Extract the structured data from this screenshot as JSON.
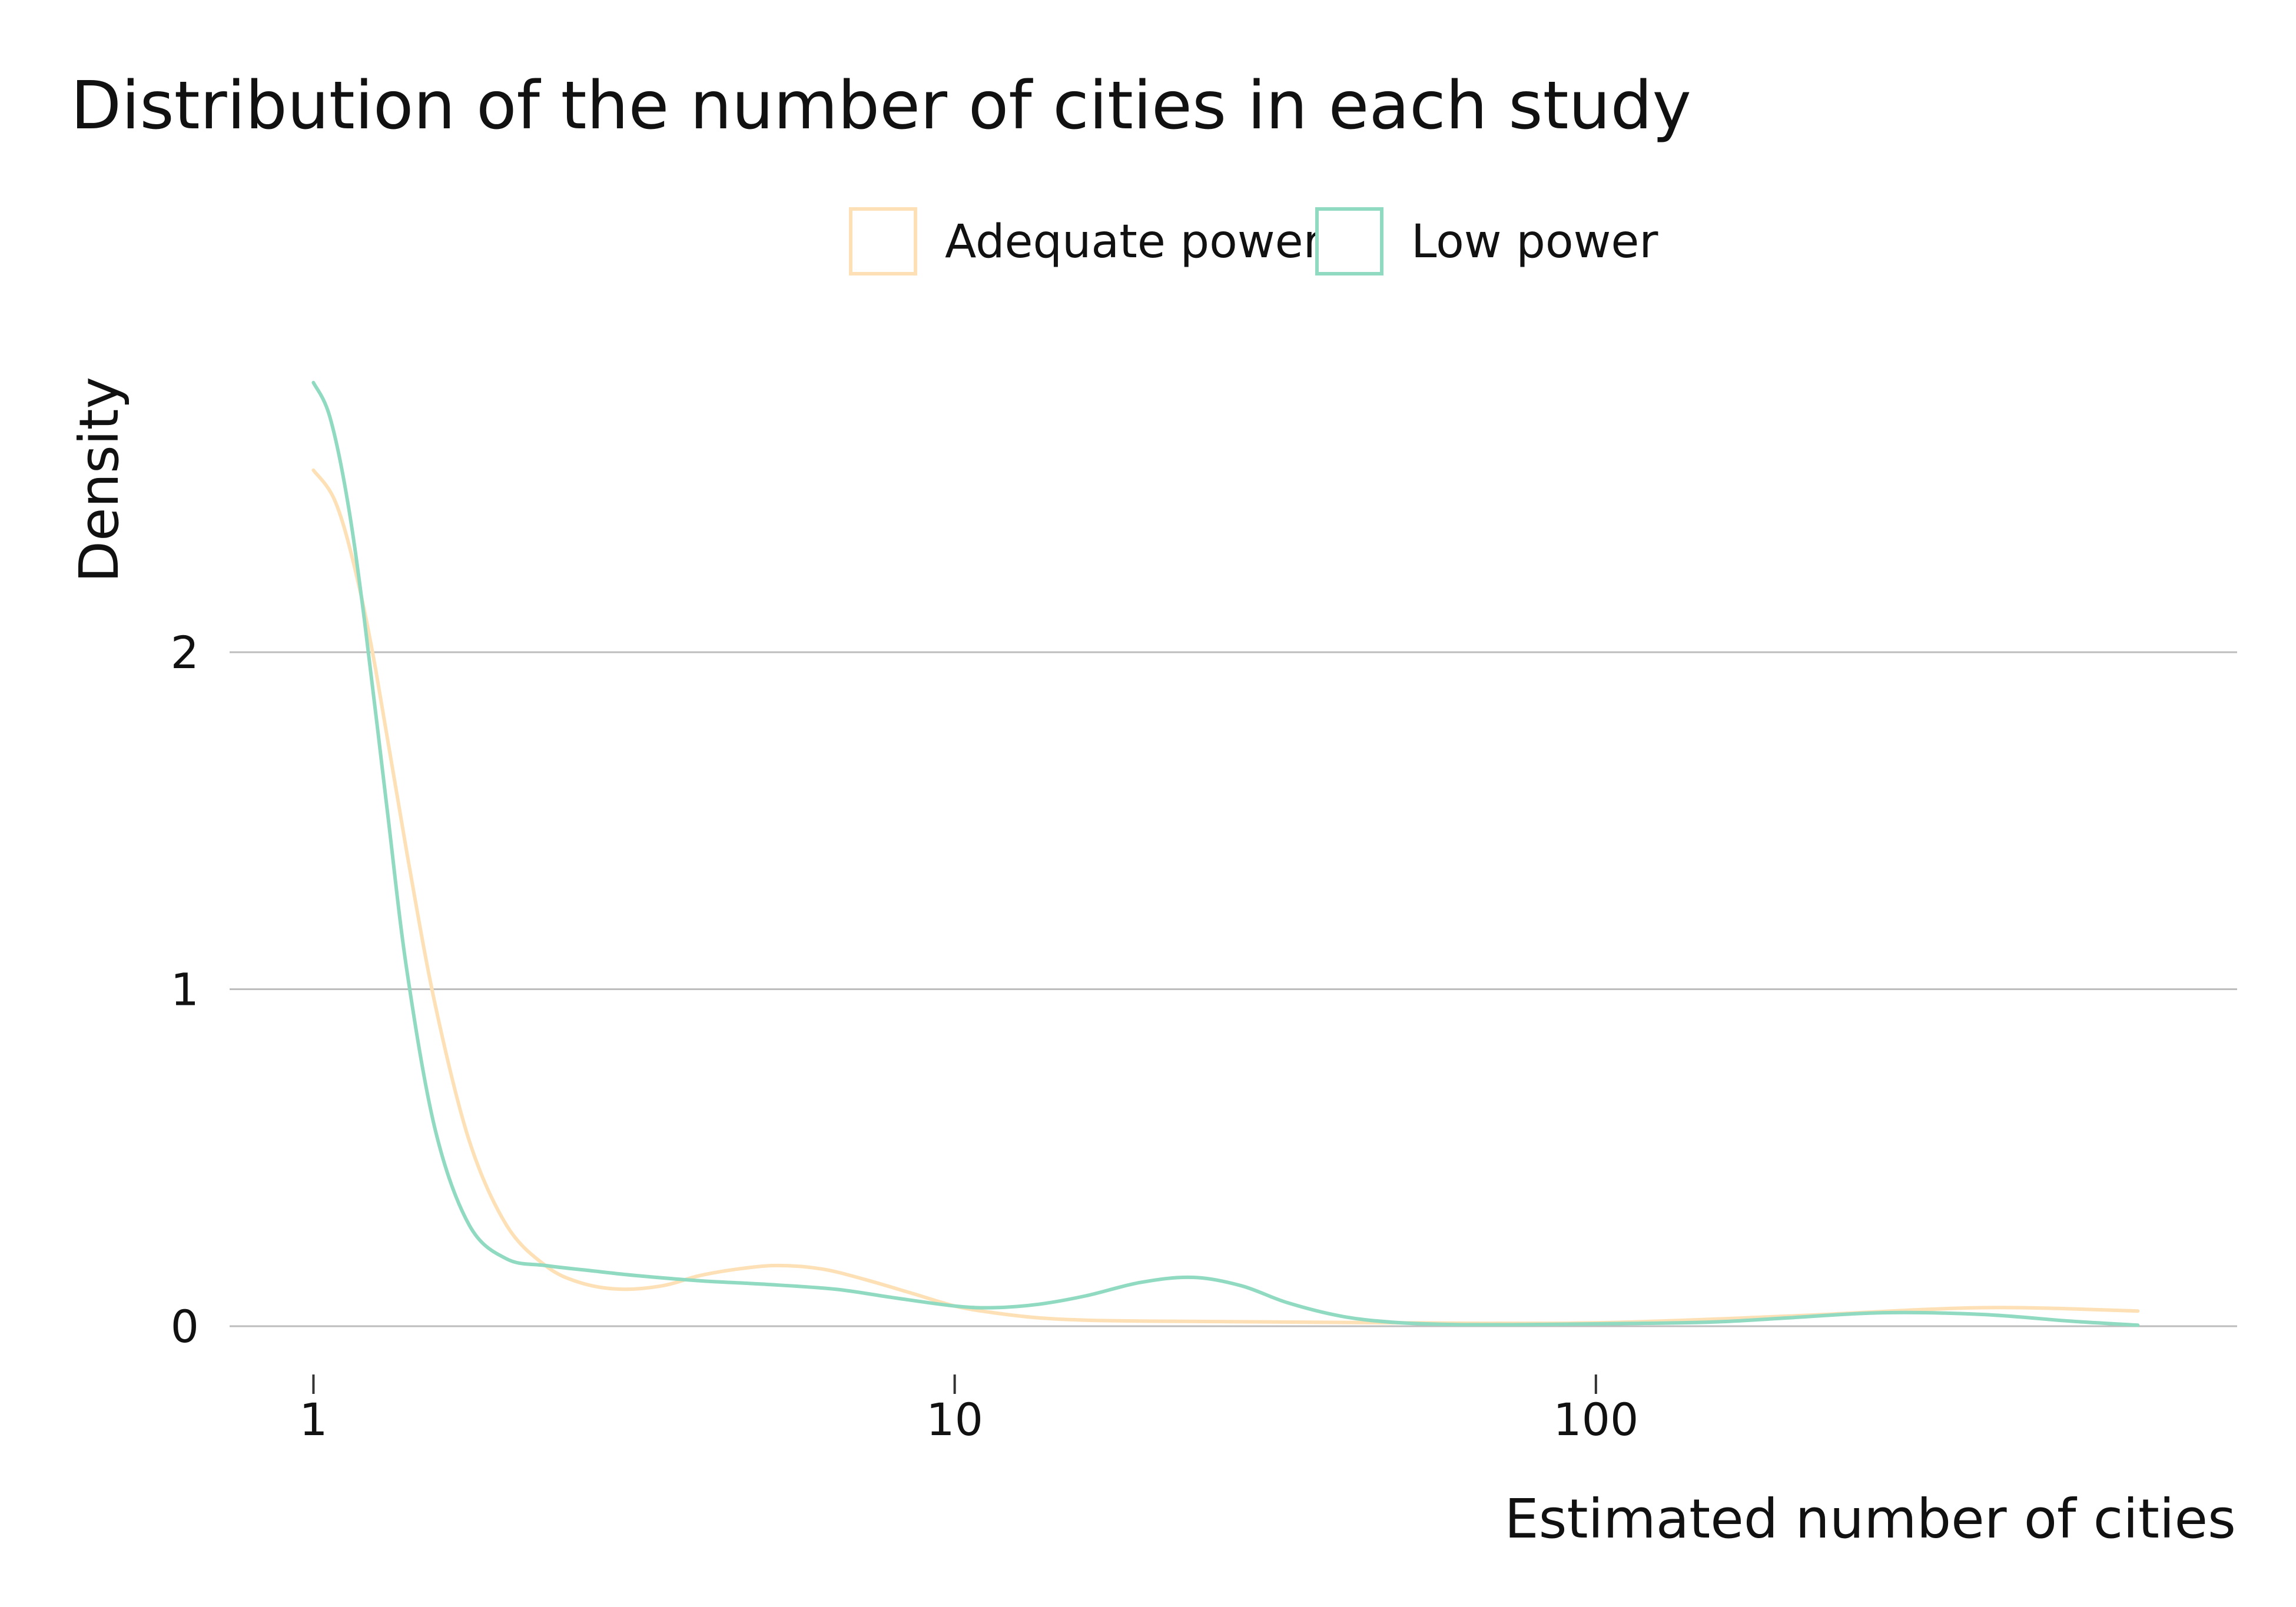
{
  "chart_data": {
    "type": "line",
    "title": "Distribution of the number of cities in each study",
    "xlabel": "Estimated number of cities",
    "ylabel": "Density",
    "x_scale": "log10",
    "xlim": [
      0.74,
      1000
    ],
    "ylim": [
      0,
      2.8
    ],
    "x_ticks": [
      {
        "value": 1,
        "label": "1"
      },
      {
        "value": 10,
        "label": "10"
      },
      {
        "value": 100,
        "label": "100"
      }
    ],
    "y_ticks": [
      {
        "value": 0,
        "label": "0"
      },
      {
        "value": 1,
        "label": "1"
      },
      {
        "value": 2,
        "label": "2"
      }
    ],
    "grid": "horizontal",
    "legend_position": "top",
    "series": [
      {
        "name": "Adequate power",
        "color": "#fde0b5",
        "x": [
          1,
          1.08,
          1.16,
          1.25,
          1.4,
          1.55,
          1.75,
          2,
          2.3,
          2.6,
          3,
          3.5,
          4,
          4.6,
          5.3,
          6.2,
          7.2,
          8.5,
          10,
          11.5,
          13.5,
          16,
          20,
          30,
          50,
          100,
          200,
          400,
          700
        ],
        "y": [
          2.54,
          2.45,
          2.25,
          1.95,
          1.4,
          0.95,
          0.55,
          0.3,
          0.18,
          0.13,
          0.11,
          0.12,
          0.15,
          0.17,
          0.18,
          0.17,
          0.14,
          0.1,
          0.06,
          0.04,
          0.025,
          0.018,
          0.015,
          0.013,
          0.01,
          0.01,
          0.03,
          0.055,
          0.045
        ]
      },
      {
        "name": "Low power",
        "color": "#8fdac0",
        "x": [
          1,
          1.06,
          1.13,
          1.2,
          1.3,
          1.4,
          1.55,
          1.75,
          2,
          2.3,
          2.7,
          3.2,
          4,
          5,
          6.5,
          8,
          10,
          11.5,
          13.5,
          16,
          19.5,
          23.5,
          28,
          33,
          40,
          48,
          60,
          80,
          100,
          150,
          200,
          280,
          400,
          550,
          700
        ],
        "y": [
          2.8,
          2.7,
          2.45,
          2.1,
          1.55,
          1.05,
          0.58,
          0.3,
          0.2,
          0.18,
          0.165,
          0.15,
          0.135,
          0.125,
          0.11,
          0.085,
          0.06,
          0.055,
          0.065,
          0.09,
          0.13,
          0.145,
          0.12,
          0.07,
          0.03,
          0.012,
          0.005,
          0.005,
          0.007,
          0.012,
          0.025,
          0.04,
          0.035,
          0.015,
          0.003
        ]
      }
    ]
  }
}
